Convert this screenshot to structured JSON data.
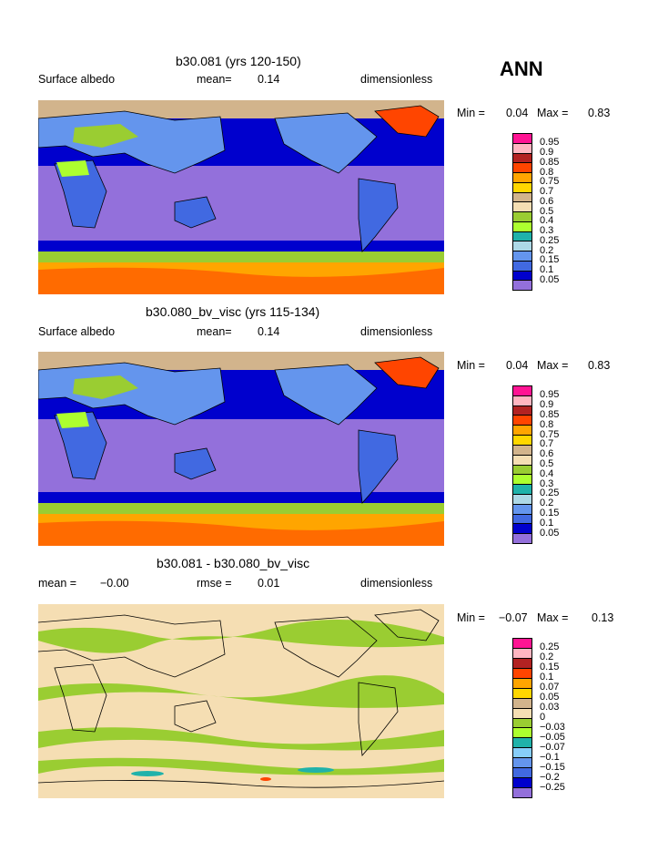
{
  "header": {
    "season": "ANN"
  },
  "panels": [
    {
      "title": "b30.081 (yrs 120-150)",
      "left_label": "Surface albedo",
      "mean_label": "mean=",
      "mean_value": "0.14",
      "units": "dimensionless",
      "min_label": "Min =",
      "min_value": "0.04",
      "max_label": "Max =",
      "max_value": "0.83"
    },
    {
      "title": "b30.080_bv_visc (yrs 115-134)",
      "left_label": "Surface albedo",
      "mean_label": "mean=",
      "mean_value": "0.14",
      "units": "dimensionless",
      "min_label": "Min =",
      "min_value": "0.04",
      "max_label": "Max =",
      "max_value": "0.83"
    },
    {
      "title": "b30.081 - b30.080_bv_visc",
      "left_label": "mean =",
      "left_value": "−0.00",
      "mid_label": "rmse =",
      "mid_value": "0.01",
      "units": "dimensionless",
      "min_label": "Min =",
      "min_value": "−0.07",
      "max_label": "Max =",
      "max_value": "0.13"
    }
  ],
  "chart_data": [
    {
      "type": "heatmap",
      "title": "b30.081 (yrs 120-150)",
      "variable": "Surface albedo",
      "units": "dimensionless",
      "mean": 0.14,
      "min": 0.04,
      "max": 0.83,
      "levels": [
        "0.05",
        "0.1",
        "0.15",
        "0.2",
        "0.25",
        "0.3",
        "0.4",
        "0.5",
        "0.6",
        "0.7",
        "0.75",
        "0.8",
        "0.85",
        "0.9",
        "0.95"
      ],
      "colors": [
        "#9370db",
        "#0000cd",
        "#4169e1",
        "#6495ed",
        "#add8e6",
        "#20b2aa",
        "#adff2f",
        "#9acd32",
        "#f5deb3",
        "#d2b48c",
        "#ffd700",
        "#ffa500",
        "#ff4500",
        "#b22222",
        "#ffb6c1",
        "#ff1493"
      ]
    },
    {
      "type": "heatmap",
      "title": "b30.080_bv_visc (yrs 115-134)",
      "variable": "Surface albedo",
      "units": "dimensionless",
      "mean": 0.14,
      "min": 0.04,
      "max": 0.83,
      "levels": [
        "0.05",
        "0.1",
        "0.15",
        "0.2",
        "0.25",
        "0.3",
        "0.4",
        "0.5",
        "0.6",
        "0.7",
        "0.75",
        "0.8",
        "0.85",
        "0.9",
        "0.95"
      ],
      "colors": [
        "#9370db",
        "#0000cd",
        "#4169e1",
        "#6495ed",
        "#add8e6",
        "#20b2aa",
        "#adff2f",
        "#9acd32",
        "#f5deb3",
        "#d2b48c",
        "#ffd700",
        "#ffa500",
        "#ff4500",
        "#b22222",
        "#ffb6c1",
        "#ff1493"
      ]
    },
    {
      "type": "heatmap",
      "title": "b30.081 - b30.080_bv_visc",
      "units": "dimensionless",
      "mean": -0.0,
      "rmse": 0.01,
      "min": -0.07,
      "max": 0.13,
      "levels": [
        "−0.25",
        "−0.2",
        "−0.15",
        "−0.1",
        "−0.07",
        "−0.05",
        "−0.03",
        "0",
        "0.03",
        "0.05",
        "0.07",
        "0.1",
        "0.15",
        "0.2",
        "0.25"
      ],
      "colors": [
        "#9370db",
        "#0000cd",
        "#4169e1",
        "#6495ed",
        "#87cefa",
        "#20b2aa",
        "#adff2f",
        "#9acd32",
        "#f5deb3",
        "#d2b48c",
        "#ffd700",
        "#ffa500",
        "#ff4500",
        "#b22222",
        "#ffb6c1",
        "#ff1493"
      ]
    }
  ]
}
